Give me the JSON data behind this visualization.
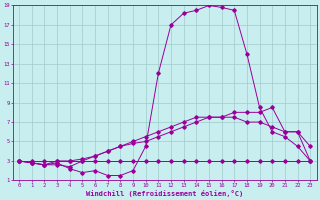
{
  "xlabel": "Windchill (Refroidissement éolien,°C)",
  "bg_color": "#c8eef0",
  "grid_color": "#a0cccc",
  "line_color": "#990099",
  "xlim": [
    -0.5,
    23.5
  ],
  "ylim": [
    1,
    19
  ],
  "xticks": [
    0,
    1,
    2,
    3,
    4,
    5,
    6,
    7,
    8,
    9,
    10,
    11,
    12,
    13,
    14,
    15,
    16,
    17,
    18,
    19,
    20,
    21,
    22,
    23
  ],
  "yticks": [
    1,
    3,
    5,
    7,
    9,
    11,
    13,
    15,
    17,
    19
  ],
  "line1_x": [
    0,
    1,
    2,
    3,
    4,
    5,
    6,
    7,
    8,
    9,
    10,
    11,
    12,
    13,
    14,
    15,
    16,
    17,
    18,
    19,
    20,
    21,
    22,
    23
  ],
  "line1_y": [
    3,
    3,
    3,
    3,
    3,
    3,
    3,
    3,
    3,
    3,
    3,
    3,
    3,
    3,
    3,
    3,
    3,
    3,
    3,
    3,
    3,
    3,
    3,
    3
  ],
  "line2_x": [
    0,
    1,
    2,
    3,
    4,
    5,
    6,
    7,
    8,
    9,
    10,
    11,
    12,
    13,
    14,
    15,
    16,
    17,
    18,
    19,
    20,
    21,
    22,
    23
  ],
  "line2_y": [
    3,
    2.8,
    2.6,
    2.6,
    2.4,
    3,
    3.5,
    4,
    4.5,
    5,
    5.5,
    6,
    6.5,
    7,
    7.5,
    7.5,
    7.5,
    8,
    8,
    8,
    8.5,
    6,
    6,
    4.5
  ],
  "line3_x": [
    0,
    1,
    2,
    3,
    4,
    5,
    6,
    7,
    8,
    9,
    10,
    11,
    12,
    13,
    14,
    15,
    16,
    17,
    18,
    19,
    20,
    21,
    22,
    23
  ],
  "line3_y": [
    3,
    2.8,
    2.6,
    2.8,
    2.2,
    1.8,
    2,
    1.5,
    1.5,
    2,
    4.5,
    12,
    17,
    18.2,
    18.5,
    19,
    18.8,
    18.5,
    14,
    8.5,
    6,
    5.5,
    4.5,
    3
  ],
  "line4_x": [
    0,
    1,
    2,
    3,
    4,
    5,
    6,
    7,
    8,
    9,
    10,
    11,
    12,
    13,
    14,
    15,
    16,
    17,
    18,
    19,
    20,
    21,
    22,
    23
  ],
  "line4_y": [
    3,
    2.8,
    2.6,
    3,
    3,
    3.2,
    3.5,
    4,
    4.5,
    4.8,
    5,
    5.5,
    6,
    6.5,
    7,
    7.5,
    7.5,
    7.5,
    7,
    7,
    6.5,
    6,
    6,
    3
  ]
}
